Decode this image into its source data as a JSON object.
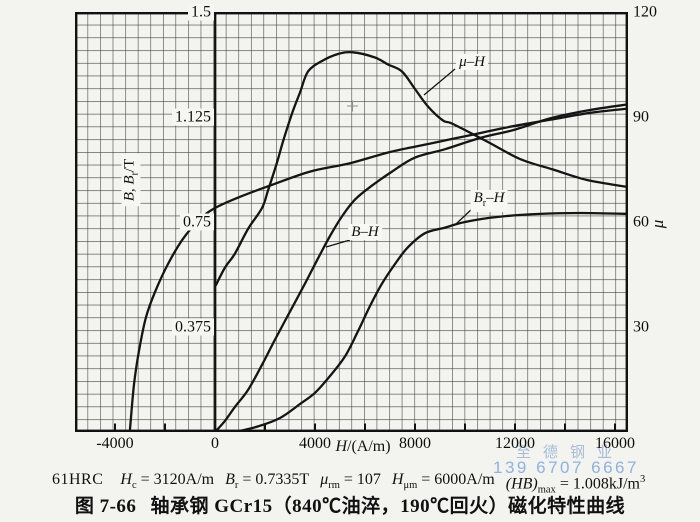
{
  "figure": {
    "caption_fig": "图 7-66",
    "caption_title": "轴承钢 GCr15（840℃油淬，190℃回火）磁化特性曲线"
  },
  "stats": {
    "hardness": "61HRC",
    "hc": {
      "sym": "H",
      "sub": "c",
      "val": " = 3120A/m"
    },
    "br": {
      "sym": "B",
      "sub": "r",
      "val": " = 0.7335T"
    },
    "mu_rm": {
      "sym": "μ",
      "sub": "rm",
      "val": " = 107"
    },
    "h_mu_m": {
      "sym": "H",
      "sub": "μm",
      "val": " = 6000A/m"
    },
    "hb_max": {
      "sym": "(HB)",
      "sub": "max",
      "val": " = 1.008kJ/m",
      "sup": "3"
    }
  },
  "watermark": {
    "line1": "至德钢业",
    "line2": "139 6707 6667",
    "color1": "#a6bcd9",
    "color2": "#8fb2e0"
  },
  "curve_labels": {
    "mu_h": "μ–H",
    "b_h": "B–H",
    "br_h_base": "B",
    "br_h_sub": "r",
    "br_h_rest": "–H"
  },
  "colors": {
    "curve_ink": "#151515",
    "grid_ink": "#333333",
    "paper": "#f3f3ef"
  },
  "chart_data": {
    "type": "line",
    "title": "轴承钢 GCr15（840℃油淬，190℃回火）磁化特性曲线",
    "grid": true,
    "x_axis": {
      "title_parts": [
        "H",
        "/(A/m)"
      ],
      "range": [
        -5600,
        16520
      ],
      "ticks": [
        -4000,
        0,
        4000,
        8000,
        12000,
        16000
      ],
      "tick_labels": [
        "-4000",
        "0",
        "4000",
        "8000",
        "12000",
        "16000"
      ],
      "minor_tick_step": 2000
    },
    "y_left": {
      "label_parts": [
        "B, B",
        "r",
        "/T"
      ],
      "range": [
        0,
        1.5
      ],
      "ticks": [
        1.5,
        1.125,
        0.75,
        0.375
      ],
      "tick_labels": [
        "1.5",
        "1.125",
        "0.75",
        "0.375"
      ]
    },
    "y_right": {
      "label": "μ",
      "range": [
        0,
        120
      ],
      "ticks": [
        120,
        90,
        60,
        30
      ],
      "tick_labels": [
        "120",
        "90",
        "60",
        "30"
      ]
    },
    "series": [
      {
        "name": "B-H",
        "label": "B–H",
        "axis": "left",
        "points": [
          [
            0,
            0
          ],
          [
            400,
            0.04
          ],
          [
            800,
            0.09
          ],
          [
            1320,
            0.15
          ],
          [
            1880,
            0.24
          ],
          [
            2400,
            0.33
          ],
          [
            3000,
            0.43
          ],
          [
            3600,
            0.53
          ],
          [
            4120,
            0.62
          ],
          [
            4600,
            0.7
          ],
          [
            5080,
            0.77
          ],
          [
            5600,
            0.83
          ],
          [
            6280,
            0.88
          ],
          [
            7080,
            0.93
          ],
          [
            8000,
            0.98
          ],
          [
            9200,
            1.01
          ],
          [
            10600,
            1.05
          ],
          [
            12000,
            1.08
          ],
          [
            13400,
            1.12
          ],
          [
            15000,
            1.15
          ],
          [
            16520,
            1.17
          ]
        ]
      },
      {
        "name": "hysteresis-upper-branch",
        "label": "",
        "axis": "left",
        "points": [
          [
            -3400,
            0.01
          ],
          [
            -3240,
            0.17
          ],
          [
            -3040,
            0.29
          ],
          [
            -2760,
            0.41
          ],
          [
            -2400,
            0.5
          ],
          [
            -1880,
            0.6
          ],
          [
            -1280,
            0.69
          ],
          [
            -600,
            0.76
          ],
          [
            0,
            0.8
          ],
          [
            1000,
            0.84
          ],
          [
            2200,
            0.88
          ],
          [
            3800,
            0.93
          ],
          [
            5400,
            0.96
          ],
          [
            7000,
            1.0
          ],
          [
            8600,
            1.03
          ],
          [
            10200,
            1.06
          ],
          [
            11800,
            1.09
          ],
          [
            13400,
            1.115
          ],
          [
            15000,
            1.14
          ],
          [
            16520,
            1.155
          ]
        ]
      },
      {
        "name": "Br-H",
        "label": "Br–H",
        "axis": "left",
        "points": [
          [
            800,
            0
          ],
          [
            1720,
            0.02
          ],
          [
            2600,
            0.05
          ],
          [
            3400,
            0.1
          ],
          [
            4000,
            0.14
          ],
          [
            4600,
            0.2
          ],
          [
            5200,
            0.27
          ],
          [
            5720,
            0.36
          ],
          [
            6200,
            0.45
          ],
          [
            6680,
            0.53
          ],
          [
            7200,
            0.6
          ],
          [
            7720,
            0.66
          ],
          [
            8400,
            0.71
          ],
          [
            9200,
            0.73
          ],
          [
            10000,
            0.75
          ],
          [
            11280,
            0.768
          ],
          [
            13000,
            0.779
          ],
          [
            14600,
            0.782
          ],
          [
            16520,
            0.779
          ]
        ]
      },
      {
        "name": "mu-H",
        "label": "μ–H",
        "axis": "right",
        "points": [
          [
            40,
            42
          ],
          [
            400,
            47
          ],
          [
            800,
            51
          ],
          [
            1320,
            58
          ],
          [
            1880,
            64
          ],
          [
            2120,
            69
          ],
          [
            2480,
            77
          ],
          [
            2720,
            83
          ],
          [
            3080,
            91
          ],
          [
            3400,
            97
          ],
          [
            3720,
            103
          ],
          [
            4280,
            106
          ],
          [
            4920,
            108
          ],
          [
            5520,
            108.5
          ],
          [
            6400,
            107
          ],
          [
            6920,
            105
          ],
          [
            7480,
            103
          ],
          [
            8000,
            98
          ],
          [
            8520,
            93
          ],
          [
            9120,
            89
          ],
          [
            9520,
            88
          ],
          [
            10880,
            83
          ],
          [
            12200,
            78
          ],
          [
            13520,
            75
          ],
          [
            14880,
            72
          ],
          [
            16520,
            70
          ]
        ]
      }
    ]
  }
}
